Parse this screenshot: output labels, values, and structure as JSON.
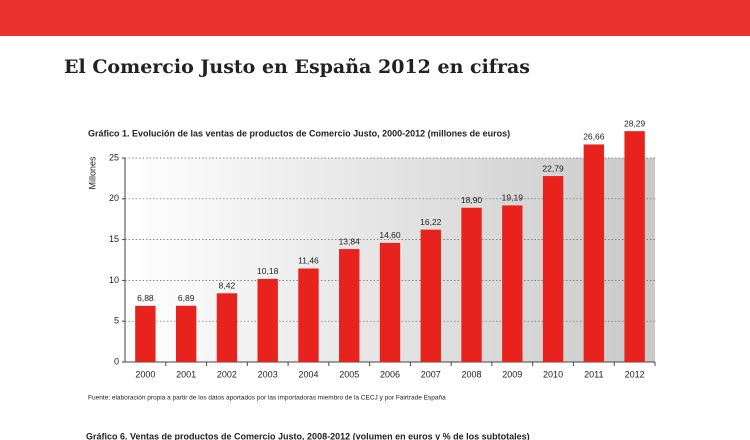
{
  "header": {
    "title": "El Comercio Justo en España 2012 en cifras"
  },
  "chart_data": {
    "type": "bar",
    "title": "Gráfico 1. Evolución de las ventas de productos de Comercio Justo, 2000-2012 (millones de euros)",
    "y_label": "Millones",
    "categories": [
      "2000",
      "2001",
      "2002",
      "2003",
      "2004",
      "2005",
      "2006",
      "2007",
      "2008",
      "2009",
      "2010",
      "2011",
      "2012"
    ],
    "values": [
      6.88,
      6.89,
      8.42,
      10.18,
      11.46,
      13.84,
      14.6,
      16.22,
      18.9,
      19.19,
      22.79,
      26.66,
      28.29
    ],
    "value_labels": [
      "6,88",
      "6,89",
      "8,42",
      "10,18",
      "11,46",
      "13,84",
      "14,60",
      "16,22",
      "18,90",
      "19,19",
      "22,79",
      "26,66",
      "28,29"
    ],
    "color": "#e8231e",
    "ylim": [
      0,
      25
    ],
    "yticks": [
      0,
      5,
      10,
      15,
      20,
      25
    ],
    "grid": true
  },
  "source": "Fuente: elaboración propia a partir de los datos aportados por las importadoras miembro de la CECJ y por Fairtrade España",
  "next_caption": "Gráfico 6. Ventas de productos de Comercio Justo, 2008-2012 (volumen en euros y % de los subtotales)"
}
